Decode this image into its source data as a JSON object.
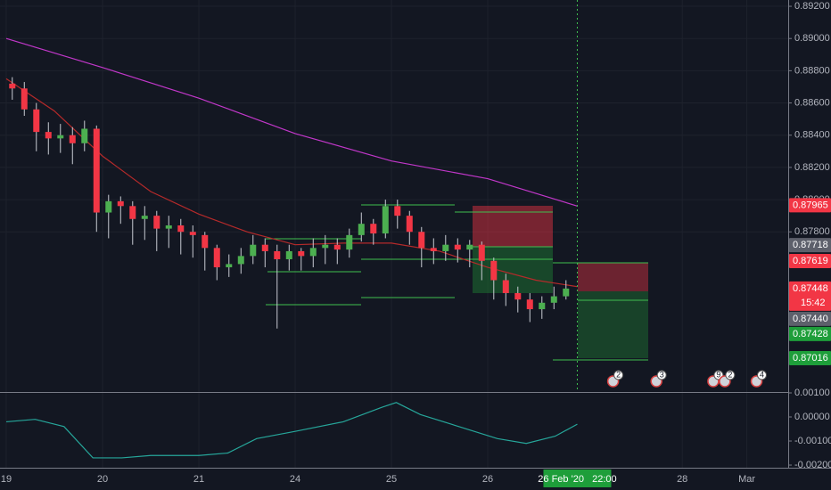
{
  "chart_data": [
    {
      "type": "candlestick",
      "up_color": "#4caf50",
      "down_color": "#f23645",
      "wick_color": "#c8cbd3",
      "xlim": [
        -0.065,
        8.12
      ],
      "ylim": [
        0.86806,
        0.89239
      ],
      "xticks": [
        {
          "value": 0,
          "label": "19"
        },
        {
          "value": 1,
          "label": "20"
        },
        {
          "value": 2,
          "label": "21"
        },
        {
          "value": 3,
          "label": "24"
        },
        {
          "value": 4,
          "label": "25"
        },
        {
          "value": 5,
          "label": "26"
        },
        {
          "value": 7.02,
          "label": "28"
        },
        {
          "value": 7.69,
          "label": "Mar"
        }
      ],
      "yticks": [
        {
          "value": 0.892,
          "label": "0.89200"
        },
        {
          "value": 0.89,
          "label": "0.89000"
        },
        {
          "value": 0.888,
          "label": "0.88800"
        },
        {
          "value": 0.886,
          "label": "0.88600"
        },
        {
          "value": 0.884,
          "label": "0.88400"
        },
        {
          "value": 0.882,
          "label": "0.88200"
        },
        {
          "value": 0.88,
          "label": "0.88000"
        },
        {
          "value": 0.878,
          "label": "0.87800"
        }
      ],
      "grid": true,
      "x": [
        0.0625,
        0.1875,
        0.3125,
        0.4375,
        0.5625,
        0.6875,
        0.8125,
        0.9375,
        1.0625,
        1.1875,
        1.3125,
        1.4375,
        1.5625,
        1.6875,
        1.8125,
        1.9375,
        2.0625,
        2.1875,
        2.3125,
        2.4375,
        2.5625,
        2.6875,
        2.8125,
        2.9375,
        3.0625,
        3.1875,
        3.3125,
        3.4375,
        3.5625,
        3.6875,
        3.8125,
        3.9375,
        4.0625,
        4.1875,
        4.3125,
        4.4375,
        4.5625,
        4.6875,
        4.8125,
        4.9375,
        5.0625,
        5.1875,
        5.3125,
        5.4375,
        5.5625,
        5.6875,
        5.8125
      ],
      "open": [
        0.8872,
        0.8869,
        0.8856,
        0.8842,
        0.8838,
        0.884,
        0.8835,
        0.8844,
        0.8792,
        0.8799,
        0.8796,
        0.8788,
        0.879,
        0.8782,
        0.8784,
        0.878,
        0.8778,
        0.877,
        0.8758,
        0.876,
        0.8765,
        0.8772,
        0.8768,
        0.8763,
        0.8768,
        0.8765,
        0.877,
        0.8772,
        0.8769,
        0.8778,
        0.8785,
        0.8779,
        0.8796,
        0.879,
        0.878,
        0.877,
        0.8768,
        0.8772,
        0.8769,
        0.8772,
        0.8762,
        0.875,
        0.8742,
        0.8738,
        0.8732,
        0.8736,
        0.874
      ],
      "high": [
        0.8876,
        0.8873,
        0.886,
        0.8848,
        0.8847,
        0.8845,
        0.8849,
        0.8846,
        0.8803,
        0.8802,
        0.8799,
        0.8796,
        0.8793,
        0.879,
        0.8788,
        0.8784,
        0.878,
        0.8772,
        0.8766,
        0.877,
        0.8778,
        0.8776,
        0.8772,
        0.8772,
        0.877,
        0.8776,
        0.8778,
        0.8776,
        0.8782,
        0.8792,
        0.8788,
        0.88,
        0.88,
        0.8793,
        0.8783,
        0.8776,
        0.8778,
        0.8776,
        0.8775,
        0.8774,
        0.8764,
        0.8754,
        0.8746,
        0.8742,
        0.874,
        0.8746,
        0.875
      ],
      "low": [
        0.8862,
        0.8852,
        0.883,
        0.8828,
        0.8829,
        0.8822,
        0.883,
        0.878,
        0.8776,
        0.8785,
        0.8772,
        0.8775,
        0.8768,
        0.877,
        0.8766,
        0.8764,
        0.8756,
        0.875,
        0.8752,
        0.8754,
        0.876,
        0.8758,
        0.872,
        0.8756,
        0.8756,
        0.8758,
        0.876,
        0.876,
        0.8764,
        0.8774,
        0.8772,
        0.8776,
        0.8782,
        0.8772,
        0.8758,
        0.876,
        0.8762,
        0.8761,
        0.8758,
        0.875,
        0.8738,
        0.8734,
        0.873,
        0.8724,
        0.8726,
        0.8732,
        0.8738
      ],
      "close": [
        0.8869,
        0.8856,
        0.8842,
        0.8838,
        0.884,
        0.8835,
        0.8844,
        0.8792,
        0.8799,
        0.8796,
        0.8788,
        0.879,
        0.8782,
        0.8784,
        0.878,
        0.8778,
        0.877,
        0.8758,
        0.876,
        0.8765,
        0.8772,
        0.8768,
        0.8763,
        0.8768,
        0.8765,
        0.877,
        0.8772,
        0.8769,
        0.8778,
        0.8785,
        0.8779,
        0.8796,
        0.879,
        0.878,
        0.877,
        0.8768,
        0.8772,
        0.8769,
        0.8772,
        0.8762,
        0.875,
        0.8742,
        0.8738,
        0.8732,
        0.8736,
        0.874,
        0.87448
      ],
      "series": [
        {
          "color": "#c137c9",
          "x": [
            0,
            1,
            2,
            3,
            4,
            5,
            5.93
          ],
          "values": [
            0.89,
            0.8882,
            0.8863,
            0.8841,
            0.8824,
            0.8813,
            0.8796
          ]
        },
        {
          "color": "#b52a2a",
          "x": [
            0,
            0.5,
            1,
            1.5,
            2,
            2.5,
            3,
            3.5,
            4,
            4.5,
            5,
            5.5,
            5.93
          ],
          "values": [
            0.8875,
            0.8855,
            0.8827,
            0.8805,
            0.8791,
            0.878,
            0.8772,
            0.8773,
            0.8773,
            0.8768,
            0.8758,
            0.875,
            0.8746
          ]
        }
      ],
      "price_tags": [
        {
          "value": 0.87965,
          "label": "0.87965",
          "color": "#f23645"
        },
        {
          "value": 0.87718,
          "label": "0.87718",
          "color": "#5d606b"
        },
        {
          "value": 0.87619,
          "label": "0.87619",
          "color": "#f23645"
        },
        {
          "value": 0.87448,
          "label": "0.87448",
          "color": "#f23645",
          "countdown": "15:42"
        },
        {
          "value": 0.8744,
          "label": "0.87440",
          "color": "#5d606b"
        },
        {
          "value": 0.87428,
          "label": "0.87428",
          "color": "#1e9e3a"
        },
        {
          "value": 0.87016,
          "label": "0.87016",
          "color": "#1e9e3a"
        }
      ],
      "crosshair": {
        "x": 5.93,
        "label": "26 Feb '20   22:00"
      },
      "events": [
        {
          "x": 6.32,
          "label": "2"
        },
        {
          "x": 6.77,
          "label": "3"
        },
        {
          "x": 7.36,
          "label": "9"
        },
        {
          "x": 7.48,
          "label": "2"
        },
        {
          "x": 7.81,
          "label": "4"
        }
      ]
    },
    {
      "type": "line",
      "ylim": [
        -0.00211,
        0.001
      ],
      "yticks": [
        {
          "value": 0.001,
          "label": "0.00100"
        },
        {
          "value": 0,
          "label": "0.00000"
        },
        {
          "value": -0.001,
          "label": "-0.00100"
        },
        {
          "value": -0.002,
          "label": "-0.00200"
        }
      ],
      "series": [
        {
          "color": "#26a69a",
          "x": [
            0,
            0.3,
            0.6,
            0.9,
            1.2,
            1.5,
            2,
            2.3,
            2.6,
            3,
            3.5,
            3.9,
            4.05,
            4.3,
            4.7,
            5.1,
            5.4,
            5.7,
            5.93
          ],
          "values": [
            -0.0002,
            -0.0001,
            -0.0004,
            -0.0017,
            -0.0017,
            -0.0016,
            -0.0016,
            -0.0015,
            -0.0009,
            -0.0006,
            -0.0002,
            0.0004,
            0.0006,
            0.0001,
            -0.0004,
            -0.0009,
            -0.0011,
            -0.0008,
            -0.0003
          ]
        }
      ]
    }
  ]
}
